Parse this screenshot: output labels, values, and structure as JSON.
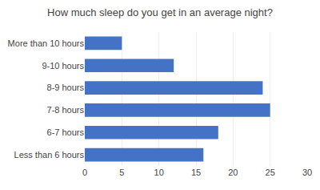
{
  "chart_data": {
    "type": "bar",
    "orientation": "horizontal",
    "title": "How much sleep do you get in an average night?",
    "categories": [
      "More than 10 hours",
      "9-10 hours",
      "8-9 hours",
      "7-8 hours",
      "6-7 hours",
      "Less than 6 hours"
    ],
    "values": [
      5,
      12,
      24,
      25,
      18,
      16
    ],
    "color": "#4472c4",
    "xlim": [
      0,
      30
    ],
    "xticks": [
      0,
      5,
      10,
      15,
      20,
      25,
      30
    ],
    "grid": true
  }
}
